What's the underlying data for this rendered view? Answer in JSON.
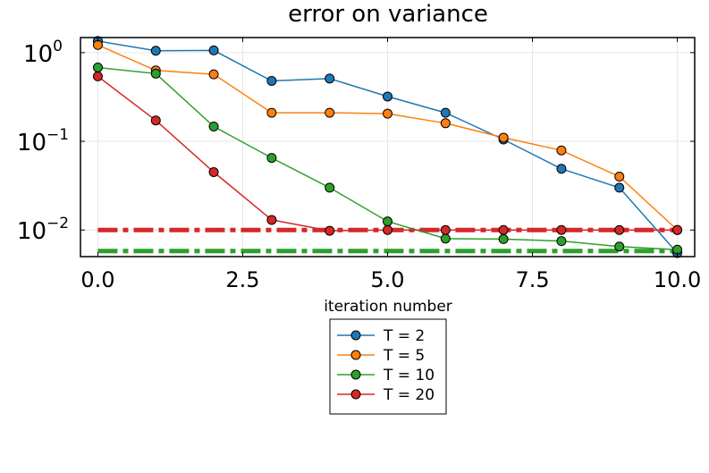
{
  "chart_data": {
    "type": "line",
    "title": "error on variance",
    "xlabel": "iteration number",
    "ylabel": "",
    "xlim": [
      -0.3,
      10.3
    ],
    "ylim_log10": [
      -2.3,
      0.17
    ],
    "yscale": "log",
    "grid": true,
    "x_ticks": [
      {
        "value": 0.0,
        "label": "0.0"
      },
      {
        "value": 2.5,
        "label": "2.5"
      },
      {
        "value": 5.0,
        "label": "5.0"
      },
      {
        "value": 7.5,
        "label": "7.5"
      },
      {
        "value": 10.0,
        "label": "10.0"
      }
    ],
    "y_ticks": [
      {
        "value": 1,
        "base": "10",
        "exp": "0"
      },
      {
        "value": 0.1,
        "base": "10",
        "exp": "−1"
      },
      {
        "value": 0.01,
        "base": "10",
        "exp": "−2"
      }
    ],
    "legend_position": "below",
    "x": [
      0,
      1,
      2,
      3,
      4,
      5,
      6,
      7,
      8,
      9,
      10
    ],
    "series": [
      {
        "name": "T = 2",
        "color": "#1f77b4",
        "values": [
          1.35,
          1.05,
          1.06,
          0.48,
          0.51,
          0.32,
          0.21,
          0.105,
          0.049,
          0.03,
          0.0055
        ]
      },
      {
        "name": "T = 5",
        "color": "#ff7f0e",
        "values": [
          1.22,
          0.63,
          0.57,
          0.21,
          0.21,
          0.205,
          0.16,
          0.11,
          0.079,
          0.04,
          0.01
        ]
      },
      {
        "name": "T = 10",
        "color": "#2ca02c",
        "values": [
          0.68,
          0.58,
          0.147,
          0.065,
          0.03,
          0.0125,
          0.008,
          0.0079,
          0.0075,
          0.0065,
          0.006
        ]
      },
      {
        "name": "T = 20",
        "color": "#d62728",
        "values": [
          0.54,
          0.172,
          0.045,
          0.013,
          0.0098,
          0.01,
          0.01,
          0.01,
          0.01,
          0.01,
          0.01
        ]
      }
    ],
    "reference_lines": [
      {
        "color": "#d62728",
        "value": 0.01
      },
      {
        "color": "#2ca02c",
        "value": 0.0058
      }
    ]
  }
}
